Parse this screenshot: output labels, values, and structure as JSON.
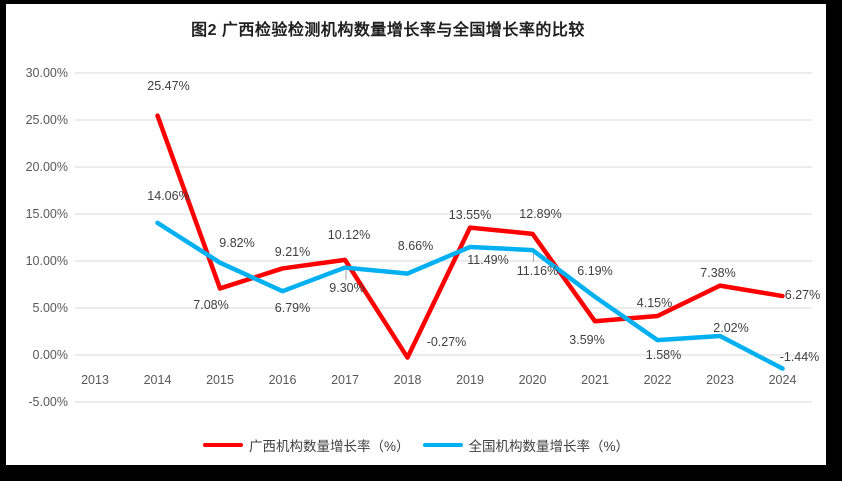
{
  "chart_data": {
    "type": "line",
    "title": "图2 广西检验检测机构数量增长率与全国增长率的比较",
    "categories": [
      "2013",
      "2014",
      "2015",
      "2016",
      "2017",
      "2018",
      "2019",
      "2020",
      "2021",
      "2022",
      "2023",
      "2024"
    ],
    "y_ticks": [
      {
        "label": "30.00%",
        "value": 30
      },
      {
        "label": "25.00%",
        "value": 25
      },
      {
        "label": "20.00%",
        "value": 20
      },
      {
        "label": "15.00%",
        "value": 15
      },
      {
        "label": "10.00%",
        "value": 10
      },
      {
        "label": "5.00%",
        "value": 5
      },
      {
        "label": "0.00%",
        "value": 0
      },
      {
        "label": "-5.00%",
        "value": -5
      }
    ],
    "ylim": [
      -5,
      30
    ],
    "y_step": 5,
    "grid": true,
    "legend_position": "bottom",
    "series": [
      {
        "name": "广西机构数量增长率（%）",
        "color": "#FE0000",
        "values": [
          null,
          25.47,
          7.08,
          9.21,
          10.12,
          -0.27,
          13.55,
          12.89,
          3.59,
          4.15,
          7.38,
          6.27
        ],
        "labels": [
          null,
          "25.47%",
          "7.08%",
          "9.21%",
          "10.12%",
          "-0.27%",
          "13.55%",
          "12.89%",
          "3.59%",
          "4.15%",
          "7.38%",
          "6.27%"
        ],
        "label_offsets": [
          null,
          [
            11,
            -30
          ],
          [
            -9,
            17
          ],
          [
            10,
            -16
          ],
          [
            4,
            -25
          ],
          [
            39,
            -16
          ],
          [
            0,
            -13
          ],
          [
            8,
            -20
          ],
          [
            -8,
            19
          ],
          [
            -3,
            -13
          ],
          [
            -2,
            -13
          ],
          [
            20,
            -1
          ]
        ],
        "leader_lines": []
      },
      {
        "name": "全国机构数量增长率（%）",
        "color": "#00B0F0",
        "values": [
          null,
          14.06,
          9.82,
          6.79,
          9.3,
          8.66,
          11.49,
          11.16,
          6.19,
          1.58,
          2.02,
          -1.44
        ],
        "labels": [
          null,
          "14.06%",
          "9.82%",
          "6.79%",
          "9.30%",
          "8.66%",
          "11.49%",
          "11.16%",
          "6.19%",
          "1.58%",
          "2.02%",
          "-1.44%"
        ],
        "label_offsets": [
          null,
          [
            11,
            -27
          ],
          [
            17,
            -20
          ],
          [
            10,
            17
          ],
          [
            2,
            20
          ],
          [
            8,
            -28
          ],
          [
            18,
            13
          ],
          [
            5,
            21
          ],
          [
            0,
            -26
          ],
          [
            6,
            15
          ],
          [
            11,
            -8
          ],
          [
            17,
            -12
          ]
        ],
        "leader_lines": [
          4,
          7
        ]
      }
    ]
  },
  "colors": {
    "background": "#FFFFFF",
    "frame": "#000000",
    "gridline": "#D9D9D9",
    "leader_line": "#A6A6A6",
    "axis_text": "#595959",
    "data_label_text": "#3F3F3F",
    "title_text": "#1F1F1F"
  }
}
